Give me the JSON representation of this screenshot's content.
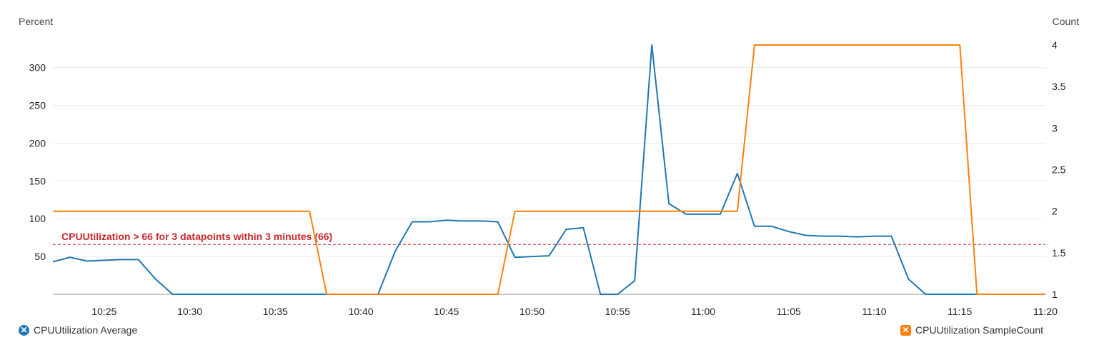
{
  "chart_data": {
    "type": "line",
    "left_axis_title": "Percent",
    "right_axis_title": "Count",
    "y_left": {
      "min": 0,
      "max": 330,
      "ticks": [
        50,
        100,
        150,
        200,
        250,
        300
      ],
      "tick_labels": [
        "50",
        "100",
        "150",
        "200",
        "250",
        "300"
      ]
    },
    "y_right": {
      "min": 1,
      "max": 4,
      "ticks": [
        1,
        1.5,
        2,
        2.5,
        3,
        3.5,
        4
      ],
      "tick_labels": [
        "1",
        "1.5",
        "2",
        "2.5",
        "3",
        "3.5",
        "4"
      ]
    },
    "x": {
      "start": "10:22",
      "end": "11:20",
      "ticks": [
        "10:25",
        "10:30",
        "10:35",
        "10:40",
        "10:45",
        "10:50",
        "10:55",
        "11:00",
        "11:05",
        "11:10",
        "11:15",
        "11:20"
      ]
    },
    "grid": true,
    "threshold": {
      "value": 66,
      "axis": "left",
      "label": "CPUUtilization > 66 for 3 datapoints within 3 minutes (66)",
      "color": "#c7282e"
    },
    "series": [
      {
        "name": "CPUUtilization Average",
        "axis": "left",
        "color": "#1f77b4",
        "points": [
          [
            "10:22",
            43
          ],
          [
            "10:23",
            49
          ],
          [
            "10:24",
            44
          ],
          [
            "10:25",
            45
          ],
          [
            "10:26",
            46
          ],
          [
            "10:27",
            46
          ],
          [
            "10:28",
            20
          ],
          [
            "10:29",
            0
          ],
          [
            "10:30",
            0
          ],
          [
            "10:31",
            0
          ],
          [
            "10:32",
            0
          ],
          [
            "10:33",
            0
          ],
          [
            "10:34",
            0
          ],
          [
            "10:35",
            0
          ],
          [
            "10:36",
            0
          ],
          [
            "10:37",
            0
          ],
          [
            "10:38",
            0
          ],
          [
            "10:39",
            0
          ],
          [
            "10:40",
            0
          ],
          [
            "10:41",
            0
          ],
          [
            "10:42",
            57
          ],
          [
            "10:43",
            96
          ],
          [
            "10:44",
            96
          ],
          [
            "10:45",
            98
          ],
          [
            "10:46",
            97
          ],
          [
            "10:47",
            97
          ],
          [
            "10:48",
            96
          ],
          [
            "10:49",
            49
          ],
          [
            "10:50",
            50
          ],
          [
            "10:51",
            51
          ],
          [
            "10:52",
            86
          ],
          [
            "10:53",
            88
          ],
          [
            "10:54",
            0
          ],
          [
            "10:55",
            0
          ],
          [
            "10:56",
            18
          ],
          [
            "10:57",
            330
          ],
          [
            "10:58",
            120
          ],
          [
            "10:59",
            106
          ],
          [
            "11:00",
            106
          ],
          [
            "11:01",
            106
          ],
          [
            "11:02",
            160
          ],
          [
            "11:03",
            90
          ],
          [
            "11:04",
            90
          ],
          [
            "11:05",
            83
          ],
          [
            "11:06",
            78
          ],
          [
            "11:07",
            77
          ],
          [
            "11:08",
            77
          ],
          [
            "11:09",
            76
          ],
          [
            "11:10",
            77
          ],
          [
            "11:11",
            77
          ],
          [
            "11:12",
            20
          ],
          [
            "11:13",
            0
          ],
          [
            "11:14",
            0
          ],
          [
            "11:15",
            0
          ],
          [
            "11:16",
            0
          ],
          [
            "11:17",
            0
          ],
          [
            "11:18",
            0
          ],
          [
            "11:19",
            0
          ],
          [
            "11:20",
            0
          ]
        ]
      },
      {
        "name": "CPUUtilization SampleCount",
        "axis": "right",
        "color": "#ff7f0e",
        "points": [
          [
            "10:22",
            2
          ],
          [
            "10:37",
            2
          ],
          [
            "10:38",
            1
          ],
          [
            "10:48",
            1
          ],
          [
            "10:49",
            2
          ],
          [
            "11:02",
            2
          ],
          [
            "11:03",
            4
          ],
          [
            "11:15",
            4
          ],
          [
            "11:16",
            1
          ],
          [
            "11:20",
            1
          ]
        ]
      }
    ]
  },
  "legend": {
    "left": {
      "label": "CPUUtilization Average",
      "icon": "close-icon",
      "color": "#1f77b4"
    },
    "right": {
      "label": "CPUUtilization SampleCount",
      "icon": "close-icon",
      "color": "#ff7f0e"
    }
  }
}
